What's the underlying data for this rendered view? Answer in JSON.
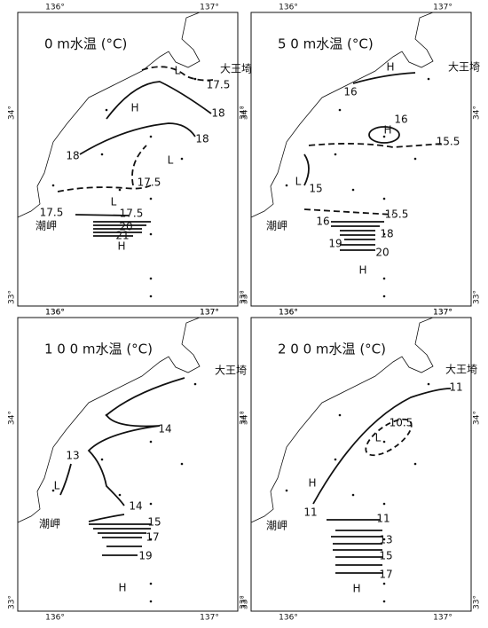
{
  "panels": [
    {
      "title": "0 m水温 (°C)",
      "lon": [
        "136°",
        "137°"
      ],
      "lat": [
        "34°",
        "33°"
      ],
      "places": [
        "大王埼",
        "潮岬"
      ],
      "labels": [
        "17.5",
        "18",
        "18",
        "18",
        "17.5",
        "17.5",
        "17.5",
        "20",
        "21",
        "H",
        "L",
        "L",
        "L",
        "H"
      ]
    },
    {
      "title": "5 0 m水温 (°C)",
      "lon": [
        "136°",
        "137°"
      ],
      "lat": [
        "34°",
        "33°"
      ],
      "places": [
        "大王埼",
        "潮岬"
      ],
      "labels": [
        "16",
        "16",
        "H",
        "H",
        "15.5",
        "L",
        "15",
        "15.5",
        "16",
        "18",
        "19",
        "20",
        "H"
      ]
    },
    {
      "title": "1 0 0 m水温 (°C)",
      "lon": [
        "136°",
        "137°"
      ],
      "lat": [
        "34°",
        "33°"
      ],
      "places": [
        "大王埼",
        "潮岬"
      ],
      "labels": [
        "14",
        "13",
        "L",
        "14",
        "15",
        "17",
        "19",
        "H"
      ]
    },
    {
      "title": "2 0 0 m水温 (°C)",
      "lon": [
        "136°",
        "137°"
      ],
      "lat": [
        "34°",
        "33°"
      ],
      "places": [
        "大王埼",
        "潮岬"
      ],
      "labels": [
        "11",
        "10.5",
        "L",
        "H",
        "11",
        "11",
        "13",
        "15",
        "17",
        "H"
      ]
    }
  ]
}
